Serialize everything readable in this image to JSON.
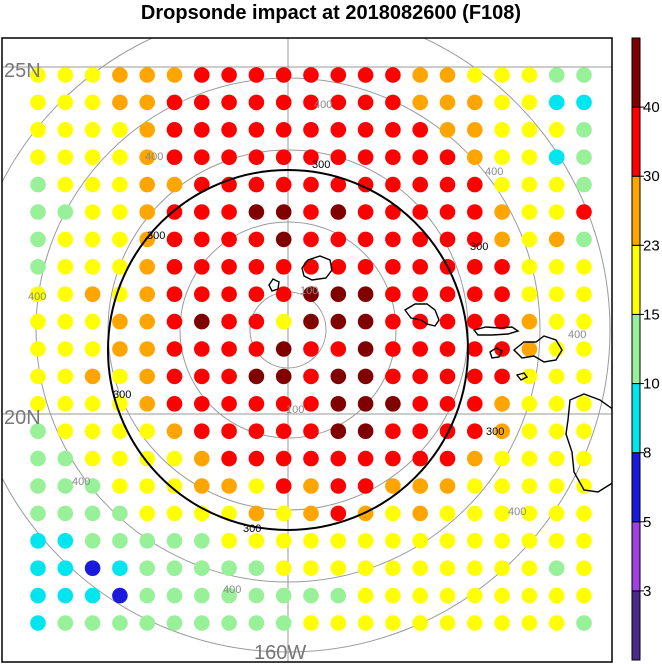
{
  "title": "Dropsonde impact at 2018082600 (F108)",
  "lat_labels": [
    "25N",
    "20N"
  ],
  "lon_labels": [
    "160W"
  ],
  "range_ring_labels": {
    "inner": "100",
    "middle": "200",
    "black": "300",
    "outer": "400"
  },
  "colorbar": {
    "ticks": [
      "3",
      "5",
      "8",
      "10",
      "15",
      "23",
      "30",
      "40"
    ],
    "colors": [
      "#4b2a8a",
      "#a040e0",
      "#1a1adc",
      "#00e5ee",
      "#98f098",
      "#ffff00",
      "#ffa500",
      "#ff0000",
      "#800000"
    ]
  },
  "chart_data": {
    "type": "heatmap",
    "title": "Dropsonde impact at 2018082600 (F108)",
    "value_classes": [
      "<3",
      "3-5",
      "5-8",
      "8-10",
      "10-15",
      "15-23",
      "23-30",
      "30-40",
      ">40"
    ],
    "grid_classes": [
      [
        "Y",
        "Y",
        "Y",
        "O",
        "O",
        "O",
        "R",
        "R",
        "R",
        "R",
        "R",
        "R",
        "R",
        "R",
        "O",
        "O",
        "Y",
        "Y",
        "Y",
        "G",
        "G"
      ],
      [
        "Y",
        "Y",
        "Y",
        "O",
        "O",
        "R",
        "R",
        "R",
        "R",
        "R",
        "R",
        "R",
        "R",
        "R",
        "O",
        "O",
        "O",
        "Y",
        "Y",
        "C",
        "C"
      ],
      [
        "Y",
        "Y",
        "Y",
        "Y",
        "O",
        "R",
        "R",
        "R",
        "R",
        "R",
        "R",
        "R",
        "R",
        "R",
        "R",
        "O",
        "O",
        "Y",
        "Y",
        "Y",
        "G"
      ],
      [
        "Y",
        "Y",
        "Y",
        "Y",
        "O",
        "R",
        "R",
        "R",
        "R",
        "R",
        "R",
        "R",
        "R",
        "R",
        "R",
        "R",
        "O",
        "Y",
        "Y",
        "C",
        "G"
      ],
      [
        "G",
        "Y",
        "Y",
        "Y",
        "O",
        "O",
        "R",
        "R",
        "R",
        "R",
        "R",
        "R",
        "R",
        "R",
        "R",
        "R",
        "R",
        "Y",
        "Y",
        "Y",
        "G"
      ],
      [
        "G",
        "G",
        "Y",
        "Y",
        "O",
        "R",
        "R",
        "R",
        "D",
        "D",
        "R",
        "D",
        "R",
        "R",
        "R",
        "R",
        "R",
        "O",
        "Y",
        "Y",
        "R"
      ],
      [
        "G",
        "Y",
        "Y",
        "Y",
        "O",
        "R",
        "R",
        "R",
        "R",
        "D",
        "R",
        "R",
        "R",
        "R",
        "R",
        "R",
        "R",
        "O",
        "Y",
        "O",
        "G"
      ],
      [
        "G",
        "Y",
        "Y",
        "Y",
        "O",
        "R",
        "R",
        "R",
        "R",
        "R",
        "R",
        "R",
        "R",
        "R",
        "R",
        "R",
        "R",
        "R",
        "Y",
        "Y",
        "Y"
      ],
      [
        "Y",
        "Y",
        "O",
        "Y",
        "O",
        "R",
        "R",
        "R",
        "R",
        "R",
        "D",
        "D",
        "D",
        "R",
        "R",
        "R",
        "R",
        "R",
        "Y",
        "Y",
        "Y"
      ],
      [
        "Y",
        "Y",
        "Y",
        "O",
        "O",
        "R",
        "D",
        "R",
        "R",
        "Y",
        "D",
        "D",
        "D",
        "R",
        "R",
        "R",
        "R",
        "R",
        "O",
        "Y",
        "Y"
      ],
      [
        "Y",
        "Y",
        "Y",
        "O",
        "O",
        "R",
        "R",
        "R",
        "R",
        "D",
        "R",
        "R",
        "D",
        "R",
        "R",
        "R",
        "R",
        "R",
        "O",
        "Y",
        "Y"
      ],
      [
        "Y",
        "Y",
        "O",
        "Y",
        "O",
        "R",
        "R",
        "R",
        "D",
        "D",
        "R",
        "D",
        "D",
        "R",
        "R",
        "R",
        "R",
        "R",
        "Y",
        "Y",
        "Y"
      ],
      [
        "Y",
        "Y",
        "Y",
        "Y",
        "O",
        "R",
        "R",
        "R",
        "R",
        "R",
        "R",
        "D",
        "D",
        "D",
        "R",
        "R",
        "R",
        "O",
        "Y",
        "Y",
        "Y"
      ],
      [
        "G",
        "Y",
        "Y",
        "Y",
        "Y",
        "O",
        "R",
        "R",
        "R",
        "R",
        "R",
        "D",
        "D",
        "R",
        "R",
        "R",
        "R",
        "O",
        "Y",
        "Y",
        "Y"
      ],
      [
        "G",
        "G",
        "Y",
        "Y",
        "Y",
        "Y",
        "O",
        "R",
        "R",
        "R",
        "R",
        "R",
        "R",
        "R",
        "R",
        "R",
        "O",
        "Y",
        "Y",
        "Y",
        "Y"
      ],
      [
        "G",
        "G",
        "G",
        "Y",
        "Y",
        "Y",
        "O",
        "O",
        "Y",
        "R",
        "O",
        "R",
        "R",
        "O",
        "O",
        "O",
        "Y",
        "Y",
        "Y",
        "Y",
        "Y"
      ],
      [
        "G",
        "G",
        "G",
        "G",
        "Y",
        "Y",
        "Y",
        "Y",
        "O",
        "Y",
        "O",
        "R",
        "O",
        "Y",
        "O",
        "Y",
        "Y",
        "Y",
        "Y",
        "Y",
        "Y"
      ],
      [
        "C",
        "C",
        "G",
        "G",
        "G",
        "G",
        "G",
        "Y",
        "Y",
        "Y",
        "Y",
        "Y",
        "Y",
        "Y",
        "Y",
        "Y",
        "Y",
        "Y",
        "Y",
        "Y",
        "Y"
      ],
      [
        "C",
        "C",
        "B",
        "C",
        "G",
        "G",
        "G",
        "G",
        "G",
        "Y",
        "Y",
        "Y",
        "Y",
        "Y",
        "Y",
        "Y",
        "Y",
        "Y",
        "Y",
        "G",
        "Y"
      ],
      [
        "C",
        "C",
        "C",
        "B",
        "G",
        "G",
        "G",
        "G",
        "G",
        "G",
        "G",
        "G",
        "Y",
        "Y",
        "Y",
        "Y",
        "Y",
        "Y",
        "Y",
        "Y",
        "Y"
      ],
      [
        "C",
        "G",
        "G",
        "G",
        "G",
        "G",
        "G",
        "G",
        "G",
        "G",
        "Y",
        "Y",
        "Y",
        "Y",
        "Y",
        "Y",
        "Y",
        "Y",
        "Y",
        "Y",
        "G"
      ]
    ]
  }
}
